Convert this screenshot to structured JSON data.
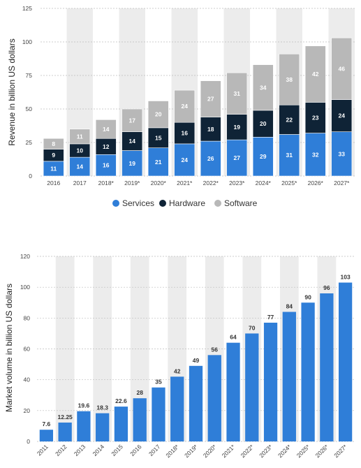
{
  "chart_data": [
    {
      "type": "bar",
      "stacked": true,
      "categories": [
        "2016",
        "2017",
        "2018*",
        "2019*",
        "2020*",
        "2021*",
        "2022*",
        "2023*",
        "2024*",
        "2025*",
        "2026*",
        "2027*"
      ],
      "series": [
        {
          "name": "Services",
          "color": "#2f7ed8",
          "values": [
            11,
            14,
            16,
            19,
            21,
            24,
            26,
            27,
            29,
            31,
            32,
            33
          ]
        },
        {
          "name": "Hardware",
          "color": "#0f2336",
          "values": [
            9,
            10,
            12,
            14,
            15,
            16,
            18,
            19,
            20,
            22,
            23,
            24
          ]
        },
        {
          "name": "Software",
          "color": "#b8b8b8",
          "values": [
            8,
            11,
            14,
            17,
            20,
            24,
            27,
            31,
            34,
            38,
            42,
            46
          ]
        }
      ],
      "ylabel": "Revenue in billion US dollars",
      "xlabel": "",
      "ylim": [
        0,
        125
      ],
      "yticks": [
        "0",
        "25",
        "50",
        "75",
        "100",
        "125"
      ],
      "grid": true,
      "legend": "bottom-center"
    },
    {
      "type": "bar",
      "categories": [
        "2011",
        "2012",
        "2013",
        "2014",
        "2015",
        "2016",
        "2017",
        "2018*",
        "2019*",
        "2020*",
        "2021*",
        "2022*",
        "2023*",
        "2024*",
        "2025*",
        "2026*",
        "2027*"
      ],
      "values": [
        7.6,
        12.25,
        19.6,
        18.3,
        22.6,
        28,
        35,
        42,
        49,
        56,
        64,
        70,
        77,
        84,
        90,
        96,
        103
      ],
      "value_labels": [
        "7.6",
        "12.25",
        "19.6",
        "18.3",
        "22.6",
        "28",
        "35",
        "42",
        "49",
        "56",
        "64",
        "70",
        "77",
        "84",
        "90",
        "96",
        "103"
      ],
      "color": "#2f7ed8",
      "ylabel": "Market volume in billion US dollars",
      "xlabel": "",
      "ylim": [
        0,
        120
      ],
      "yticks": [
        "0",
        "20",
        "40",
        "60",
        "80",
        "100",
        "120"
      ],
      "grid": true
    }
  ]
}
